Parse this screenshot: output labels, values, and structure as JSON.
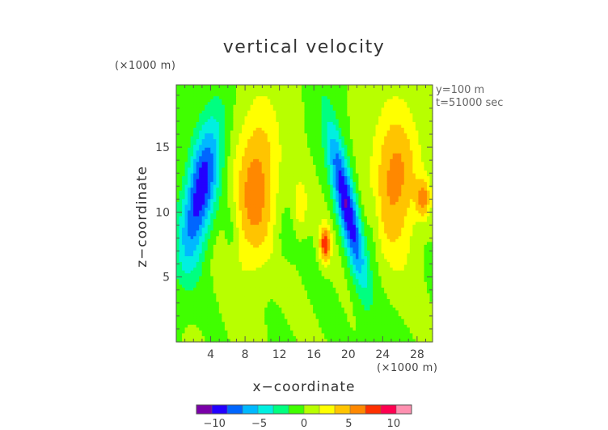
{
  "chart_data": {
    "type": "heatmap",
    "title": "vertical velocity",
    "xlabel": "x−coordinate",
    "ylabel": "z−coordinate",
    "x_unit": "(×1000 m)",
    "y_unit": "(×1000 m)",
    "annotations": [
      "y=100 m",
      "t=51000 sec"
    ],
    "x_ticks": [
      "4",
      "8",
      "12",
      "16",
      "20",
      "24",
      "28"
    ],
    "x_tick_values": [
      4,
      8,
      12,
      16,
      20,
      24,
      28
    ],
    "y_ticks": [
      "5",
      "10",
      "15"
    ],
    "y_tick_values": [
      5,
      10,
      15
    ],
    "xlim": [
      0,
      29.8
    ],
    "ylim": [
      0,
      19.8
    ],
    "colorbar": {
      "ticks": [
        "−10",
        "−5",
        "0",
        "5",
        "10"
      ],
      "tick_values": [
        -10,
        -5,
        0,
        5,
        10
      ],
      "range": [
        -12,
        12
      ]
    },
    "features": [
      {
        "x": 2.8,
        "z": 11.5,
        "sx": 1.3,
        "sz": 4.0,
        "tilt": 0.25,
        "amp": -10
      },
      {
        "x": 9.2,
        "z": 11.8,
        "sx": 1.8,
        "sz": 4.5,
        "tilt": 0.1,
        "amp": 6
      },
      {
        "x": 14.4,
        "z": 10.5,
        "sx": 0.6,
        "sz": 1.5,
        "tilt": 0,
        "amp": 3
      },
      {
        "x": 17.3,
        "z": 7.5,
        "sx": 0.45,
        "sz": 1.0,
        "tilt": 0,
        "amp": 8
      },
      {
        "x": 19.8,
        "z": 10.5,
        "sx": 0.85,
        "sz": 4.5,
        "tilt": -0.3,
        "amp": -10
      },
      {
        "x": 25.5,
        "z": 12.5,
        "sx": 1.9,
        "sz": 4.0,
        "tilt": 0,
        "amp": 6
      },
      {
        "x": 28.7,
        "z": 11.0,
        "sx": 0.55,
        "sz": 1.0,
        "tilt": 0,
        "amp": 5
      },
      {
        "x": 6.4,
        "z": 8.5,
        "sx": 0.6,
        "sz": 2.0,
        "tilt": 0,
        "amp": -1.5
      },
      {
        "x": 23.0,
        "z": 9.5,
        "sx": 0.5,
        "sz": 2.0,
        "tilt": 0,
        "amp": -1.5
      },
      {
        "x": 12.5,
        "z": 8.0,
        "sx": 0.8,
        "sz": 1.5,
        "tilt": 0,
        "amp": -1.2
      }
    ]
  },
  "colors": {
    "background": "#ffffff",
    "axis": "#555555",
    "palette": [
      "#7a00a8",
      "#2300ff",
      "#0066ff",
      "#00b8ff",
      "#00f0e0",
      "#00ff80",
      "#40ff00",
      "#b8ff00",
      "#ffff00",
      "#ffc400",
      "#ff8800",
      "#ff3000",
      "#ff0050",
      "#ff90b0"
    ]
  }
}
